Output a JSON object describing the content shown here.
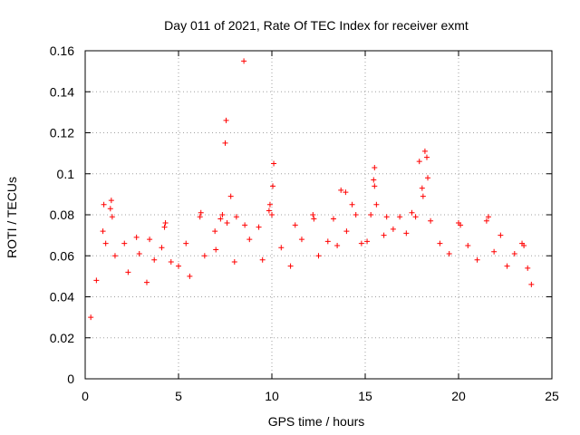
{
  "colors": {
    "series": "#ff0000",
    "axis": "#000000",
    "grid": "#a0a0a0",
    "background": "#ffffff"
  },
  "chart_data": {
    "type": "scatter",
    "title": "Day 011 of 2021, Rate Of TEC Index for receiver exmt",
    "xlabel": "GPS time / hours",
    "ylabel": "ROTI / TECUs",
    "xlim": [
      0,
      25
    ],
    "ylim": [
      0,
      0.16
    ],
    "xticks": [
      0,
      5,
      10,
      15,
      20,
      25
    ],
    "xtick_labels": [
      "0",
      "5",
      "10",
      "15",
      "20",
      "25"
    ],
    "yticks": [
      0,
      0.02,
      0.04,
      0.06,
      0.08,
      0.1,
      0.12,
      0.14,
      0.16
    ],
    "ytick_labels": [
      "0",
      "0.02",
      "0.04",
      "0.06",
      "0.08",
      "0.1",
      "0.12",
      "0.14",
      "0.16"
    ],
    "grid": true,
    "marker": "+",
    "series": [
      {
        "points": [
          [
            8.5,
            0.155
          ],
          [
            7.55,
            0.126
          ],
          [
            7.5,
            0.115
          ],
          [
            10.1,
            0.105
          ],
          [
            15.5,
            0.103
          ],
          [
            18.2,
            0.111
          ],
          [
            18.3,
            0.108
          ],
          [
            17.9,
            0.106
          ],
          [
            18.35,
            0.098
          ],
          [
            15.45,
            0.097
          ],
          [
            15.5,
            0.094
          ],
          [
            13.7,
            0.092
          ],
          [
            13.95,
            0.091
          ],
          [
            10.05,
            0.094
          ],
          [
            7.8,
            0.089
          ],
          [
            18.05,
            0.093
          ],
          [
            18.1,
            0.089
          ],
          [
            15.6,
            0.085
          ],
          [
            14.3,
            0.085
          ],
          [
            9.9,
            0.085
          ],
          [
            1.4,
            0.087
          ],
          [
            1.0,
            0.085
          ],
          [
            1.35,
            0.083
          ],
          [
            0.95,
            0.072
          ],
          [
            1.45,
            0.079
          ],
          [
            6.2,
            0.081
          ],
          [
            6.15,
            0.079
          ],
          [
            8.1,
            0.079
          ],
          [
            7.35,
            0.08
          ],
          [
            7.25,
            0.078
          ],
          [
            4.3,
            0.076
          ],
          [
            4.25,
            0.074
          ],
          [
            9.85,
            0.082
          ],
          [
            10.0,
            0.08
          ],
          [
            12.2,
            0.08
          ],
          [
            12.25,
            0.078
          ],
          [
            14.5,
            0.08
          ],
          [
            15.3,
            0.08
          ],
          [
            16.15,
            0.079
          ],
          [
            16.85,
            0.079
          ],
          [
            17.5,
            0.081
          ],
          [
            17.7,
            0.079
          ],
          [
            18.5,
            0.077
          ],
          [
            20.0,
            0.076
          ],
          [
            20.1,
            0.075
          ],
          [
            21.6,
            0.079
          ],
          [
            21.5,
            0.077
          ],
          [
            22.25,
            0.07
          ],
          [
            23.4,
            0.066
          ],
          [
            23.5,
            0.065
          ],
          [
            13.3,
            0.078
          ],
          [
            11.25,
            0.075
          ],
          [
            9.3,
            0.074
          ],
          [
            2.1,
            0.066
          ],
          [
            2.75,
            0.069
          ],
          [
            3.45,
            0.068
          ],
          [
            5.4,
            0.066
          ],
          [
            6.95,
            0.072
          ],
          [
            7.6,
            0.076
          ],
          [
            8.55,
            0.075
          ],
          [
            0.3,
            0.03
          ],
          [
            0.6,
            0.048
          ],
          [
            1.1,
            0.066
          ],
          [
            1.6,
            0.06
          ],
          [
            2.3,
            0.052
          ],
          [
            2.9,
            0.061
          ],
          [
            3.3,
            0.047
          ],
          [
            3.7,
            0.058
          ],
          [
            4.1,
            0.064
          ],
          [
            4.6,
            0.057
          ],
          [
            5.0,
            0.055
          ],
          [
            5.6,
            0.05
          ],
          [
            6.4,
            0.06
          ],
          [
            7.0,
            0.063
          ],
          [
            8.0,
            0.057
          ],
          [
            8.8,
            0.068
          ],
          [
            9.5,
            0.058
          ],
          [
            10.5,
            0.064
          ],
          [
            11.0,
            0.055
          ],
          [
            11.6,
            0.068
          ],
          [
            12.5,
            0.06
          ],
          [
            13.0,
            0.067
          ],
          [
            13.5,
            0.065
          ],
          [
            14.0,
            0.072
          ],
          [
            14.8,
            0.066
          ],
          [
            15.1,
            0.067
          ],
          [
            16.0,
            0.07
          ],
          [
            16.5,
            0.073
          ],
          [
            17.2,
            0.071
          ],
          [
            19.0,
            0.066
          ],
          [
            19.5,
            0.061
          ],
          [
            20.5,
            0.065
          ],
          [
            21.0,
            0.058
          ],
          [
            21.9,
            0.062
          ],
          [
            22.6,
            0.055
          ],
          [
            23.0,
            0.061
          ],
          [
            23.7,
            0.054
          ],
          [
            23.9,
            0.046
          ]
        ]
      }
    ]
  }
}
